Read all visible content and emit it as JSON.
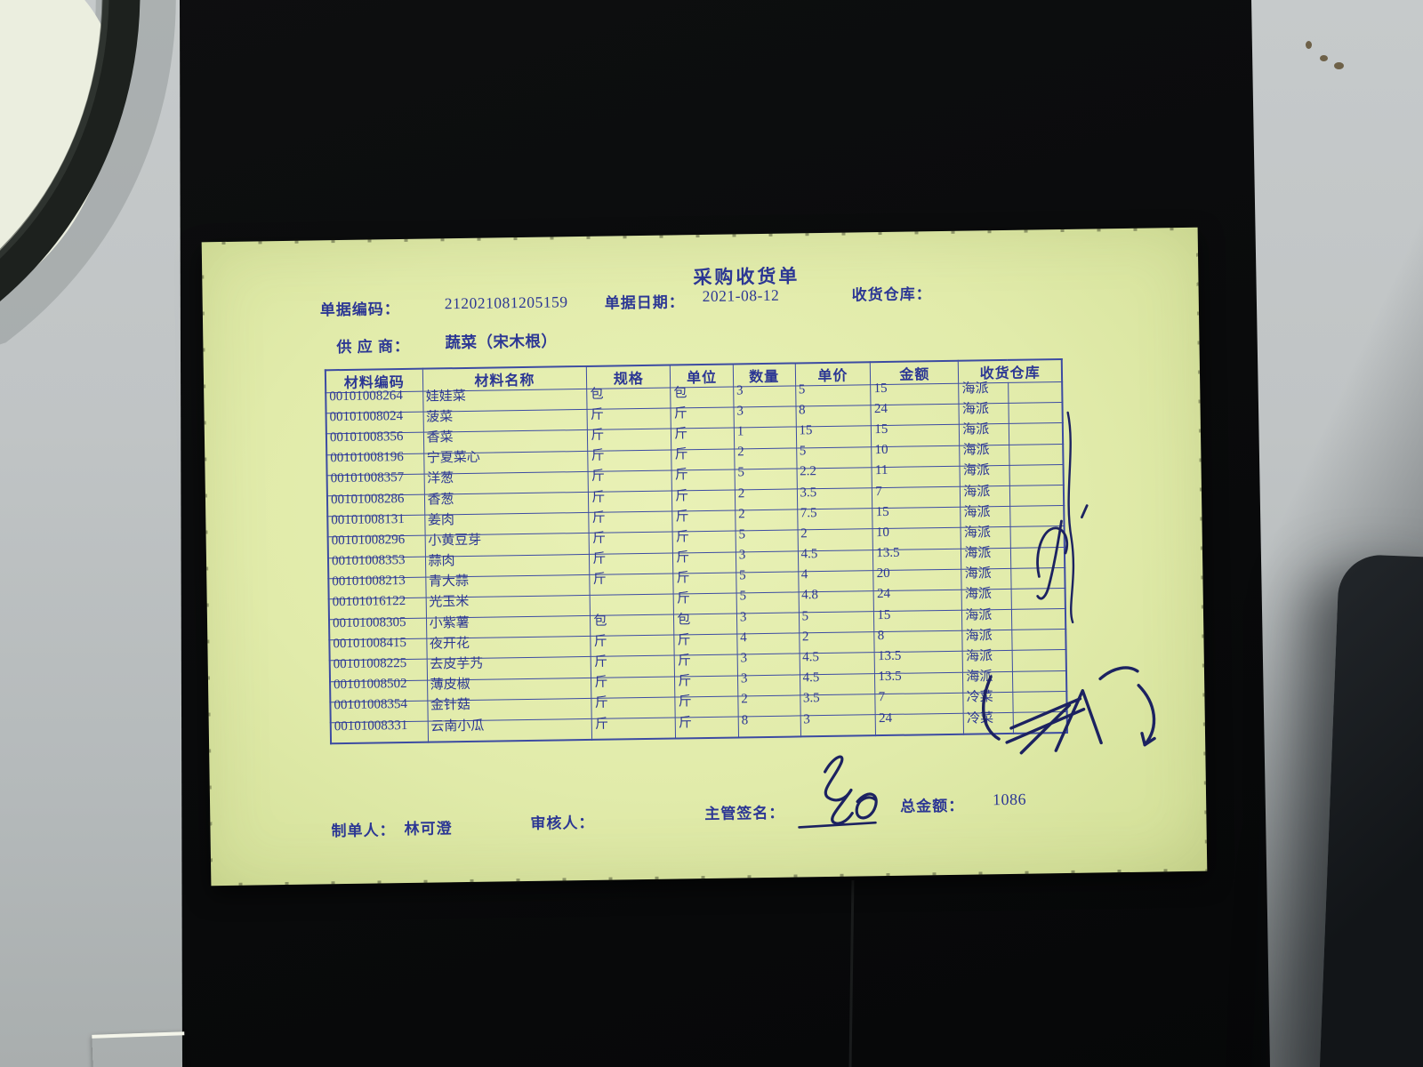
{
  "document": {
    "title": "采购收货单",
    "fields": {
      "doc_no_label": "单据编码：",
      "doc_no": "212021081205159",
      "date_label": "单据日期：",
      "date": "2021-08-12",
      "warehouse_label": "收货仓库：",
      "warehouse_value": "",
      "supplier_label": "供 应 商：",
      "supplier": "蔬菜（宋木根）"
    },
    "table": {
      "headers": [
        "材料编码",
        "材料名称",
        "规格",
        "单位",
        "数量",
        "单价",
        "金额",
        "收货仓库"
      ],
      "rows": [
        [
          "00101008264",
          "娃娃菜",
          "包",
          "包",
          "3",
          "5",
          "15",
          "海派"
        ],
        [
          "00101008024",
          "菠菜",
          "斤",
          "斤",
          "3",
          "8",
          "24",
          "海派"
        ],
        [
          "00101008356",
          "香菜",
          "斤",
          "斤",
          "1",
          "15",
          "15",
          "海派"
        ],
        [
          "00101008196",
          "宁夏菜心",
          "斤",
          "斤",
          "2",
          "5",
          "10",
          "海派"
        ],
        [
          "00101008357",
          "洋葱",
          "斤",
          "斤",
          "5",
          "2.2",
          "11",
          "海派"
        ],
        [
          "00101008286",
          "香葱",
          "斤",
          "斤",
          "2",
          "3.5",
          "7",
          "海派"
        ],
        [
          "00101008131",
          "姜肉",
          "斤",
          "斤",
          "2",
          "7.5",
          "15",
          "海派"
        ],
        [
          "00101008296",
          "小黄豆芽",
          "斤",
          "斤",
          "5",
          "2",
          "10",
          "海派"
        ],
        [
          "00101008353",
          "蒜肉",
          "斤",
          "斤",
          "3",
          "4.5",
          "13.5",
          "海派"
        ],
        [
          "00101008213",
          "青大蒜",
          "斤",
          "斤",
          "5",
          "4",
          "20",
          "海派"
        ],
        [
          "00101016122",
          "光玉米",
          "",
          "斤",
          "5",
          "4.8",
          "24",
          "海派"
        ],
        [
          "00101008305",
          "小紫薯",
          "包",
          "包",
          "3",
          "5",
          "15",
          "海派"
        ],
        [
          "00101008415",
          "夜开花",
          "斤",
          "斤",
          "4",
          "2",
          "8",
          "海派"
        ],
        [
          "00101008225",
          "去皮芋艿",
          "斤",
          "斤",
          "3",
          "4.5",
          "13.5",
          "海派"
        ],
        [
          "00101008502",
          "薄皮椒",
          "斤",
          "斤",
          "3",
          "4.5",
          "13.5",
          "海派"
        ],
        [
          "00101008354",
          "金针菇",
          "斤",
          "斤",
          "2",
          "3.5",
          "7",
          "冷菜"
        ],
        [
          "00101008331",
          "云南小瓜",
          "斤",
          "斤",
          "8",
          "3",
          "24",
          "冷菜"
        ]
      ]
    },
    "footer": {
      "maker_label": "制单人：",
      "maker": "林可澄",
      "reviewer_label": "审核人：",
      "signer_label": "主管签名：",
      "total_label": "总金额：",
      "total": "1086"
    },
    "annotations": {
      "handwriting": [
        "supervisor-signature-scribble",
        "pen-mark-right-margin",
        "pen-scrawl-bottom-right",
        "pen-line-table-right-edge"
      ]
    }
  },
  "colors": {
    "paper": "#e1ebaa",
    "ink": "#2c3794",
    "grid_line": "#3c4ba2",
    "pen": "#1c2261",
    "mat": "#0a0b0c",
    "desk": "#c0c4c5"
  }
}
